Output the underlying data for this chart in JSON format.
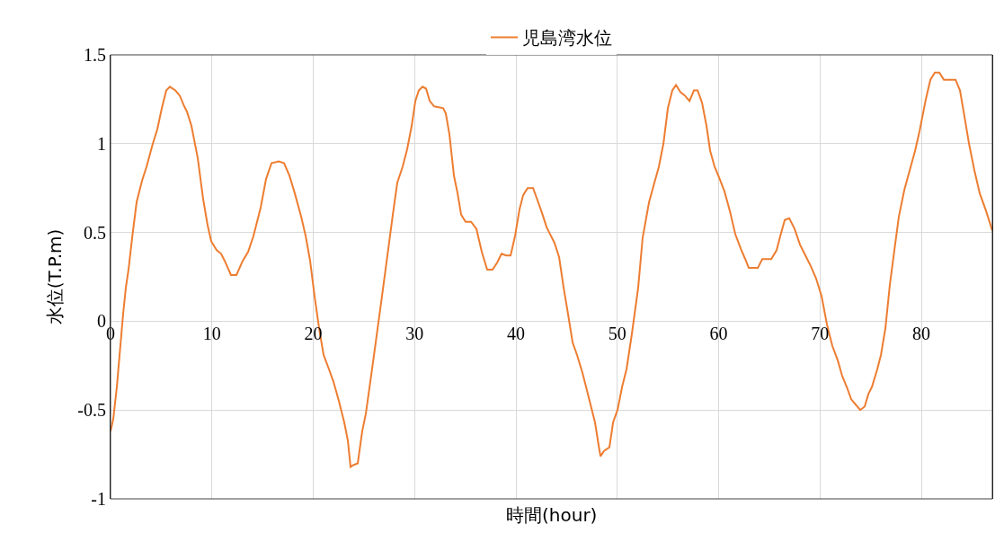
{
  "chart_data": {
    "type": "line",
    "xlabel": "時間(hour)",
    "ylabel": "水位(T.P.m)",
    "xlim": [
      0,
      87
    ],
    "xticks": [
      0,
      10,
      20,
      30,
      40,
      50,
      60,
      70,
      80
    ],
    "ylim": [
      -1,
      1.5
    ],
    "yticks": [
      -1,
      -0.5,
      0,
      0.5,
      1,
      1.5
    ],
    "grid": true,
    "legend": "top",
    "marker": "none",
    "line_style": "solid",
    "series": [
      {
        "name": "児島湾水位",
        "color": "#ed7d31",
        "x": [
          0,
          0.27,
          0.62,
          0.89,
          1.24,
          1.51,
          1.77,
          2.13,
          2.57,
          3.1,
          3.55,
          4.17,
          4.61,
          5.06,
          5.5,
          5.85,
          6.39,
          6.83,
          7.27,
          7.54,
          7.98,
          8.6,
          9.13,
          9.58,
          9.93,
          10.47,
          10.91,
          11.26,
          11.88,
          12.42,
          13.04,
          13.57,
          14.1,
          14.81,
          15.34,
          15.88,
          16.59,
          17.12,
          17.65,
          18.18,
          18.8,
          19.25,
          19.69,
          20.13,
          20.58,
          21.02,
          21.55,
          21.99,
          22.53,
          23.06,
          23.41,
          23.68,
          23.95,
          24.39,
          24.83,
          25.19,
          25.63,
          26.16,
          26.78,
          27.41,
          27.85,
          28.29,
          28.82,
          29.27,
          29.71,
          30.07,
          30.42,
          30.78,
          31.13,
          31.49,
          31.93,
          32.82,
          33.08,
          33.44,
          33.88,
          34.24,
          34.59,
          35.03,
          35.57,
          36.1,
          36.63,
          37.16,
          37.69,
          38.14,
          38.58,
          39.02,
          39.47,
          39.91,
          40.35,
          40.71,
          41.15,
          41.69,
          42.13,
          42.57,
          43.02,
          43.37,
          43.81,
          44.26,
          44.7,
          45.14,
          45.59,
          46.03,
          46.56,
          46.92,
          47.36,
          47.8,
          48.16,
          48.34,
          48.69,
          49.22,
          49.58,
          50.02,
          50.47,
          50.91,
          51.44,
          52.06,
          52.5,
          53.13,
          53.66,
          54.1,
          54.55,
          54.99,
          55.43,
          55.79,
          56.23,
          56.67,
          57.12,
          57.56,
          57.92,
          58.36,
          58.8,
          59.16,
          59.6,
          60.04,
          60.58,
          61.11,
          61.64,
          62.17,
          62.62,
          62.97,
          63.86,
          64.3,
          65.19,
          65.72,
          66.08,
          66.52,
          66.96,
          67.49,
          68.03,
          68.56,
          69.09,
          69.62,
          70.16,
          70.69,
          71.22,
          71.75,
          72.2,
          72.64,
          73.08,
          73.53,
          73.97,
          74.41,
          74.77,
          75.12,
          75.65,
          76.01,
          76.45,
          76.9,
          77.43,
          77.78,
          78.32,
          78.85,
          79.38,
          79.82,
          80.44,
          80.89,
          81.33,
          81.77,
          82.22,
          82.93,
          83.37,
          83.81,
          84.26,
          84.7,
          85.23,
          85.76,
          86.39,
          87
        ],
        "values": [
          -0.62,
          -0.55,
          -0.37,
          -0.19,
          0.04,
          0.19,
          0.29,
          0.47,
          0.67,
          0.79,
          0.87,
          1.0,
          1.08,
          1.2,
          1.3,
          1.32,
          1.3,
          1.27,
          1.21,
          1.18,
          1.1,
          0.92,
          0.69,
          0.54,
          0.45,
          0.4,
          0.38,
          0.34,
          0.26,
          0.26,
          0.34,
          0.39,
          0.48,
          0.64,
          0.8,
          0.89,
          0.9,
          0.89,
          0.82,
          0.72,
          0.59,
          0.48,
          0.34,
          0.14,
          -0.04,
          -0.19,
          -0.27,
          -0.34,
          -0.45,
          -0.57,
          -0.67,
          -0.82,
          -0.81,
          -0.8,
          -0.62,
          -0.52,
          -0.34,
          -0.12,
          0.14,
          0.41,
          0.6,
          0.78,
          0.87,
          0.97,
          1.1,
          1.24,
          1.3,
          1.32,
          1.31,
          1.24,
          1.21,
          1.2,
          1.17,
          1.05,
          0.82,
          0.72,
          0.6,
          0.56,
          0.56,
          0.52,
          0.39,
          0.29,
          0.29,
          0.33,
          0.38,
          0.37,
          0.37,
          0.48,
          0.63,
          0.71,
          0.75,
          0.75,
          0.68,
          0.61,
          0.53,
          0.49,
          0.44,
          0.36,
          0.19,
          0.04,
          -0.12,
          -0.19,
          -0.29,
          -0.37,
          -0.47,
          -0.57,
          -0.7,
          -0.76,
          -0.73,
          -0.71,
          -0.57,
          -0.5,
          -0.37,
          -0.27,
          -0.07,
          0.19,
          0.47,
          0.67,
          0.78,
          0.87,
          1.0,
          1.2,
          1.3,
          1.33,
          1.29,
          1.27,
          1.24,
          1.3,
          1.3,
          1.23,
          1.1,
          0.96,
          0.87,
          0.81,
          0.73,
          0.62,
          0.49,
          0.41,
          0.35,
          0.3,
          0.3,
          0.35,
          0.35,
          0.4,
          0.48,
          0.57,
          0.58,
          0.52,
          0.43,
          0.37,
          0.31,
          0.24,
          0.14,
          -0.02,
          -0.14,
          -0.22,
          -0.31,
          -0.37,
          -0.44,
          -0.47,
          -0.5,
          -0.48,
          -0.41,
          -0.37,
          -0.27,
          -0.19,
          -0.04,
          0.21,
          0.44,
          0.59,
          0.74,
          0.85,
          0.96,
          1.07,
          1.25,
          1.36,
          1.4,
          1.4,
          1.36,
          1.36,
          1.36,
          1.3,
          1.15,
          1.0,
          0.85,
          0.72,
          0.62,
          0.51
        ]
      }
    ]
  }
}
